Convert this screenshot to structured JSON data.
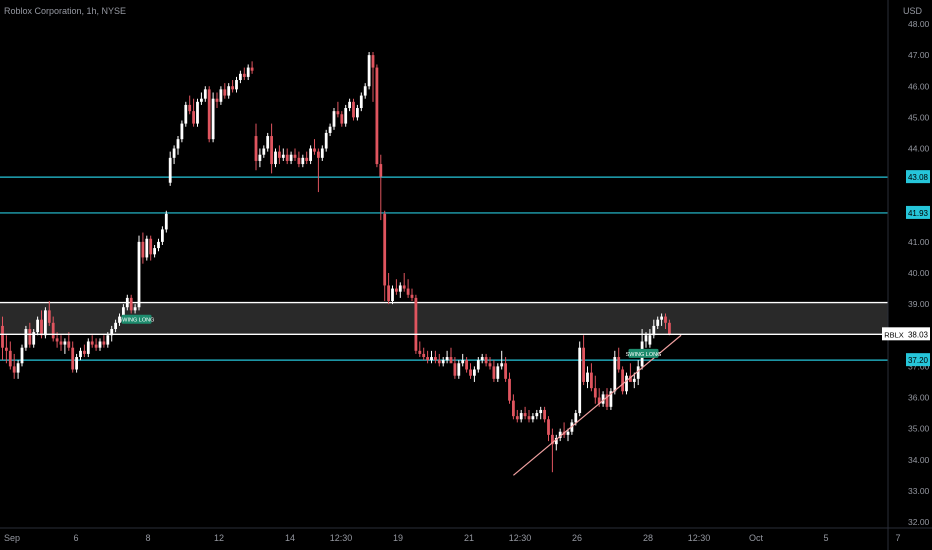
{
  "header": {
    "symbol_line": "Roblox Corporation, 1h, NYSE",
    "currency": "USD"
  },
  "chart_data": {
    "type": "candlestick",
    "ylim": [
      32.0,
      48.0
    ],
    "y_ticks": [
      "48.00",
      "47.00",
      "46.00",
      "45.00",
      "44.00",
      "43.00",
      "42.00",
      "41.00",
      "40.00",
      "39.00",
      "38.00",
      "37.00",
      "36.00",
      "35.00",
      "34.00",
      "33.00",
      "32.00"
    ],
    "x_ticks": [
      "Sep",
      "6",
      "8",
      "12",
      "14",
      "12:30",
      "19",
      "21",
      "12:30",
      "26",
      "28",
      "12:30",
      "Oct",
      "5",
      "7"
    ],
    "colors": {
      "up": "#ffffff",
      "down": "#e0555f",
      "cyan": "#26c6da",
      "white_level": "#ffffff",
      "trend": "#f0a0a0",
      "zone": "#3a3a3a",
      "label_green": "#1e8c6e"
    },
    "levels": [
      {
        "price": 43.08,
        "label": "43.08",
        "color": "cyan"
      },
      {
        "price": 41.93,
        "label": "41.93",
        "color": "cyan"
      },
      {
        "price": 37.2,
        "label": "37.20",
        "color": "cyan"
      }
    ],
    "zone": {
      "top": 39.05,
      "bottom": 38.03
    },
    "last_price": {
      "symbol": "RBLX",
      "value": "38.03",
      "price": 38.03
    },
    "trendline": {
      "from": {
        "index": 131,
        "price": 33.5
      },
      "to": {
        "index": 174,
        "price": 38.0
      }
    },
    "signals": [
      {
        "index": 30,
        "price": 38.5,
        "text": "SWING LONG"
      },
      {
        "index": 160,
        "price": 37.4,
        "text": "SWING LONG"
      }
    ],
    "candles": [
      [
        38.3,
        38.6,
        37.2,
        37.6
      ],
      [
        37.6,
        38.0,
        37.1,
        37.5
      ],
      [
        37.5,
        37.8,
        36.9,
        37.0
      ],
      [
        37.0,
        37.4,
        36.6,
        36.8
      ],
      [
        36.8,
        37.2,
        36.6,
        37.1
      ],
      [
        37.1,
        37.7,
        37.0,
        37.6
      ],
      [
        37.6,
        38.3,
        37.5,
        38.2
      ],
      [
        38.2,
        38.4,
        37.6,
        37.7
      ],
      [
        37.7,
        38.2,
        37.6,
        38.1
      ],
      [
        38.1,
        38.6,
        38.0,
        38.5
      ],
      [
        38.5,
        38.8,
        37.9,
        38.0
      ],
      [
        38.0,
        38.9,
        37.9,
        38.8
      ],
      [
        38.8,
        39.1,
        38.3,
        38.4
      ],
      [
        38.4,
        38.6,
        37.8,
        37.9
      ],
      [
        37.9,
        38.1,
        37.6,
        37.8
      ],
      [
        37.8,
        38.0,
        37.5,
        37.7
      ],
      [
        37.7,
        37.9,
        37.4,
        37.8
      ],
      [
        37.8,
        38.1,
        37.5,
        37.6
      ],
      [
        37.6,
        37.8,
        36.8,
        36.9
      ],
      [
        36.9,
        37.4,
        36.8,
        37.3
      ],
      [
        37.3,
        37.6,
        37.2,
        37.5
      ],
      [
        37.5,
        37.7,
        37.3,
        37.4
      ],
      [
        37.4,
        37.9,
        37.3,
        37.8
      ],
      [
        37.8,
        38.0,
        37.6,
        37.7
      ],
      [
        37.7,
        37.9,
        37.5,
        37.6
      ],
      [
        37.6,
        37.9,
        37.5,
        37.8
      ],
      [
        37.8,
        38.0,
        37.6,
        37.7
      ],
      [
        37.7,
        38.1,
        37.6,
        38.0
      ],
      [
        38.0,
        38.3,
        37.8,
        38.2
      ],
      [
        38.2,
        38.5,
        38.1,
        38.4
      ],
      [
        38.4,
        38.7,
        38.3,
        38.6
      ],
      [
        38.6,
        39.0,
        38.5,
        38.9
      ],
      [
        38.9,
        39.3,
        38.8,
        39.2
      ],
      [
        39.2,
        39.3,
        38.7,
        38.8
      ],
      [
        38.8,
        39.0,
        38.7,
        38.9
      ],
      [
        38.9,
        41.2,
        38.8,
        41.0
      ],
      [
        41.0,
        41.3,
        40.3,
        40.5
      ],
      [
        40.5,
        41.2,
        40.4,
        41.1
      ],
      [
        41.1,
        41.2,
        40.4,
        40.6
      ],
      [
        40.6,
        40.9,
        40.5,
        40.8
      ],
      [
        40.8,
        41.1,
        40.7,
        41.0
      ],
      [
        41.0,
        41.5,
        40.9,
        41.4
      ],
      [
        41.4,
        42.0,
        41.3,
        41.9
      ],
      [
        42.9,
        43.9,
        42.8,
        43.7
      ],
      [
        43.7,
        44.1,
        43.5,
        44.0
      ],
      [
        44.0,
        44.4,
        43.8,
        44.3
      ],
      [
        44.3,
        44.9,
        44.2,
        44.8
      ],
      [
        44.8,
        45.5,
        44.7,
        45.4
      ],
      [
        45.4,
        45.7,
        45.1,
        45.2
      ],
      [
        45.2,
        45.6,
        44.7,
        44.8
      ],
      [
        44.8,
        45.6,
        44.7,
        45.5
      ],
      [
        45.5,
        45.8,
        45.4,
        45.6
      ],
      [
        45.6,
        46.0,
        45.5,
        45.9
      ],
      [
        45.9,
        46.0,
        44.2,
        44.3
      ],
      [
        44.3,
        45.8,
        44.2,
        45.6
      ],
      [
        45.6,
        45.8,
        45.3,
        45.5
      ],
      [
        45.5,
        46.0,
        45.4,
        45.9
      ],
      [
        45.9,
        46.1,
        45.6,
        45.7
      ],
      [
        45.7,
        46.1,
        45.6,
        46.0
      ],
      [
        46.0,
        46.2,
        45.8,
        45.9
      ],
      [
        45.9,
        46.3,
        45.8,
        46.2
      ],
      [
        46.2,
        46.5,
        46.1,
        46.4
      ],
      [
        46.4,
        46.6,
        46.2,
        46.3
      ],
      [
        46.3,
        46.7,
        46.2,
        46.6
      ],
      [
        46.6,
        46.8,
        46.4,
        46.5
      ],
      [
        44.4,
        44.8,
        43.3,
        43.6
      ],
      [
        43.6,
        44.0,
        43.4,
        43.8
      ],
      [
        43.8,
        44.1,
        43.7,
        44.0
      ],
      [
        44.0,
        44.5,
        43.9,
        44.4
      ],
      [
        44.4,
        44.8,
        43.2,
        43.5
      ],
      [
        43.5,
        44.0,
        43.4,
        43.9
      ],
      [
        43.9,
        44.1,
        43.5,
        43.7
      ],
      [
        43.7,
        44.0,
        43.6,
        43.8
      ],
      [
        43.8,
        44.0,
        43.5,
        43.6
      ],
      [
        43.6,
        43.9,
        43.5,
        43.8
      ],
      [
        43.8,
        44.0,
        43.6,
        43.7
      ],
      [
        43.7,
        43.9,
        43.4,
        43.5
      ],
      [
        43.5,
        43.8,
        43.4,
        43.7
      ],
      [
        43.7,
        43.9,
        43.5,
        43.6
      ],
      [
        43.6,
        44.1,
        43.5,
        44.0
      ],
      [
        44.0,
        44.3,
        43.8,
        43.9
      ],
      [
        43.9,
        44.0,
        42.6,
        43.7
      ],
      [
        43.7,
        44.1,
        43.6,
        44.0
      ],
      [
        44.0,
        44.6,
        43.9,
        44.5
      ],
      [
        44.5,
        44.8,
        44.4,
        44.7
      ],
      [
        44.7,
        45.3,
        44.6,
        45.2
      ],
      [
        45.2,
        45.5,
        45.0,
        45.1
      ],
      [
        45.1,
        45.2,
        44.7,
        44.8
      ],
      [
        44.8,
        45.4,
        44.7,
        45.3
      ],
      [
        45.3,
        45.6,
        45.2,
        45.5
      ],
      [
        45.5,
        45.6,
        44.9,
        45.0
      ],
      [
        45.0,
        45.4,
        44.9,
        45.3
      ],
      [
        45.3,
        45.8,
        45.2,
        45.7
      ],
      [
        45.7,
        46.1,
        45.6,
        46.0
      ],
      [
        46.0,
        47.1,
        45.9,
        47.0
      ],
      [
        47.0,
        47.1,
        45.5,
        46.6
      ],
      [
        46.6,
        46.7,
        43.4,
        43.5
      ],
      [
        43.5,
        43.8,
        41.7,
        43.1
      ],
      [
        41.9,
        42.0,
        39.1,
        39.6
      ],
      [
        39.6,
        40.0,
        39.0,
        39.1
      ],
      [
        39.1,
        39.6,
        39.0,
        39.5
      ],
      [
        39.5,
        39.8,
        39.3,
        39.4
      ],
      [
        39.4,
        39.7,
        39.2,
        39.6
      ],
      [
        39.6,
        40.0,
        39.4,
        39.5
      ],
      [
        39.5,
        39.8,
        39.2,
        39.3
      ],
      [
        39.3,
        39.5,
        39.1,
        39.2
      ],
      [
        39.2,
        39.3,
        37.4,
        37.5
      ],
      [
        37.5,
        37.8,
        37.3,
        37.4
      ],
      [
        37.4,
        37.6,
        37.2,
        37.3
      ],
      [
        37.3,
        37.5,
        37.1,
        37.2
      ],
      [
        37.2,
        37.5,
        37.1,
        37.3
      ],
      [
        37.3,
        37.5,
        37.1,
        37.2
      ],
      [
        37.2,
        37.4,
        37.0,
        37.1
      ],
      [
        37.1,
        37.3,
        37.0,
        37.2
      ],
      [
        37.2,
        37.5,
        37.1,
        37.3
      ],
      [
        37.3,
        37.6,
        37.2,
        37.1
      ],
      [
        37.1,
        37.3,
        36.6,
        36.7
      ],
      [
        36.7,
        37.2,
        36.6,
        37.1
      ],
      [
        37.1,
        37.4,
        37.0,
        37.2
      ],
      [
        37.2,
        37.3,
        36.8,
        36.9
      ],
      [
        36.9,
        37.1,
        36.6,
        36.7
      ],
      [
        36.7,
        37.0,
        36.5,
        36.9
      ],
      [
        36.9,
        37.3,
        36.8,
        37.2
      ],
      [
        37.2,
        37.4,
        37.1,
        37.3
      ],
      [
        37.3,
        37.4,
        37.0,
        37.1
      ],
      [
        37.1,
        37.3,
        36.9,
        37.0
      ],
      [
        37.0,
        37.2,
        36.5,
        36.6
      ],
      [
        36.6,
        37.1,
        36.5,
        37.0
      ],
      [
        37.0,
        37.5,
        36.9,
        37.1
      ],
      [
        37.1,
        37.3,
        36.5,
        36.6
      ],
      [
        36.6,
        36.8,
        35.8,
        35.9
      ],
      [
        35.9,
        36.1,
        35.3,
        35.4
      ],
      [
        35.4,
        35.6,
        35.2,
        35.3
      ],
      [
        35.3,
        35.6,
        35.2,
        35.5
      ],
      [
        35.5,
        35.7,
        35.3,
        35.4
      ],
      [
        35.4,
        35.6,
        35.2,
        35.3
      ],
      [
        35.3,
        35.5,
        35.2,
        35.4
      ],
      [
        35.4,
        35.6,
        35.3,
        35.5
      ],
      [
        35.5,
        35.7,
        35.3,
        35.6
      ],
      [
        35.6,
        35.7,
        35.2,
        35.3
      ],
      [
        35.3,
        35.4,
        34.6,
        34.8
      ],
      [
        34.8,
        35.0,
        33.6,
        34.5
      ],
      [
        34.5,
        34.8,
        34.3,
        34.7
      ],
      [
        34.7,
        35.0,
        34.6,
        34.9
      ],
      [
        34.9,
        35.2,
        34.7,
        34.8
      ],
      [
        34.8,
        35.0,
        34.6,
        34.9
      ],
      [
        34.9,
        35.3,
        34.8,
        35.2
      ],
      [
        35.2,
        35.6,
        35.1,
        35.5
      ],
      [
        35.5,
        37.8,
        35.4,
        37.6
      ],
      [
        37.6,
        38.0,
        36.4,
        36.5
      ],
      [
        36.5,
        37.0,
        36.3,
        36.8
      ],
      [
        36.8,
        37.1,
        36.2,
        36.3
      ],
      [
        36.3,
        36.7,
        35.8,
        36.0
      ],
      [
        36.0,
        36.3,
        35.7,
        35.8
      ],
      [
        35.8,
        36.2,
        35.7,
        36.1
      ],
      [
        36.1,
        36.3,
        35.6,
        35.7
      ],
      [
        35.7,
        36.3,
        35.6,
        36.2
      ],
      [
        36.2,
        37.5,
        36.1,
        37.3
      ],
      [
        37.3,
        37.6,
        36.8,
        36.9
      ],
      [
        36.9,
        37.0,
        36.1,
        36.2
      ],
      [
        36.2,
        36.8,
        36.1,
        36.7
      ],
      [
        36.7,
        37.1,
        36.6,
        36.5
      ],
      [
        36.5,
        36.8,
        36.3,
        36.6
      ],
      [
        36.6,
        37.2,
        36.4,
        37.0
      ],
      [
        37.0,
        38.2,
        36.9,
        37.8
      ],
      [
        37.8,
        38.1,
        37.6,
        38.0
      ],
      [
        37.7,
        38.2,
        37.6,
        38.0
      ],
      [
        38.0,
        38.5,
        37.9,
        38.3
      ],
      [
        38.3,
        38.6,
        38.2,
        38.5
      ],
      [
        38.5,
        38.7,
        38.3,
        38.6
      ],
      [
        38.6,
        38.7,
        38.2,
        38.4
      ],
      [
        38.4,
        38.5,
        38.0,
        38.03
      ]
    ]
  }
}
